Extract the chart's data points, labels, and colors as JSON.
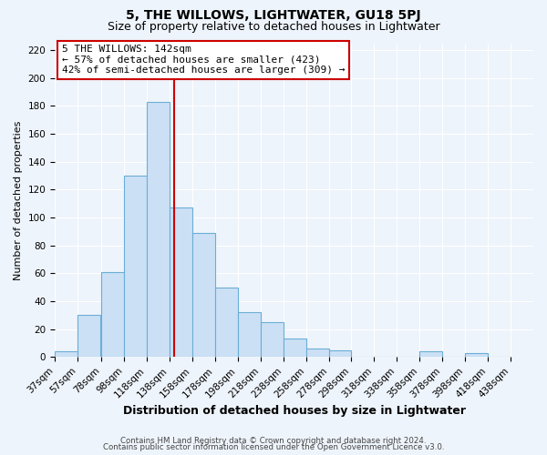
{
  "title": "5, THE WILLOWS, LIGHTWATER, GU18 5PJ",
  "subtitle": "Size of property relative to detached houses in Lightwater",
  "xlabel": "Distribution of detached houses by size in Lightwater",
  "ylabel": "Number of detached properties",
  "bar_left_edges": [
    37,
    57,
    78,
    98,
    118,
    138,
    158,
    178,
    198,
    218,
    238,
    258,
    278,
    298,
    318,
    338,
    358,
    378,
    398,
    418
  ],
  "bar_widths": [
    20,
    20,
    20,
    20,
    20,
    20,
    20,
    20,
    20,
    20,
    20,
    20,
    20,
    20,
    20,
    20,
    20,
    20,
    20,
    20
  ],
  "bar_heights": [
    4,
    30,
    61,
    130,
    183,
    107,
    89,
    50,
    32,
    25,
    13,
    6,
    5,
    0,
    0,
    0,
    4,
    0,
    3,
    0
  ],
  "bar_facecolor": "#cce0f5",
  "bar_edgecolor": "#6aaed6",
  "tick_labels": [
    "37sqm",
    "57sqm",
    "78sqm",
    "98sqm",
    "118sqm",
    "138sqm",
    "158sqm",
    "178sqm",
    "198sqm",
    "218sqm",
    "238sqm",
    "258sqm",
    "278sqm",
    "298sqm",
    "318sqm",
    "338sqm",
    "358sqm",
    "378sqm",
    "398sqm",
    "418sqm",
    "438sqm"
  ],
  "tick_positions": [
    37,
    57,
    78,
    98,
    118,
    138,
    158,
    178,
    198,
    218,
    238,
    258,
    278,
    298,
    318,
    338,
    358,
    378,
    398,
    418,
    438
  ],
  "vline_x": 142,
  "vline_color": "#cc0000",
  "ylim": [
    0,
    225
  ],
  "yticks": [
    0,
    20,
    40,
    60,
    80,
    100,
    120,
    140,
    160,
    180,
    200,
    220
  ],
  "annotation_title": "5 THE WILLOWS: 142sqm",
  "annotation_line1": "← 57% of detached houses are smaller (423)",
  "annotation_line2": "42% of semi-detached houses are larger (309) →",
  "footer1": "Contains HM Land Registry data © Crown copyright and database right 2024.",
  "footer2": "Contains public sector information licensed under the Open Government Licence v3.0.",
  "bg_color": "#eef4fb",
  "plot_bg_color": "#eef4fb",
  "grid_color": "#ffffff",
  "title_fontsize": 10,
  "subtitle_fontsize": 9,
  "xlabel_fontsize": 9,
  "ylabel_fontsize": 8,
  "tick_fontsize": 7.5,
  "annotation_fontsize": 8,
  "footer_fontsize": 6.2
}
